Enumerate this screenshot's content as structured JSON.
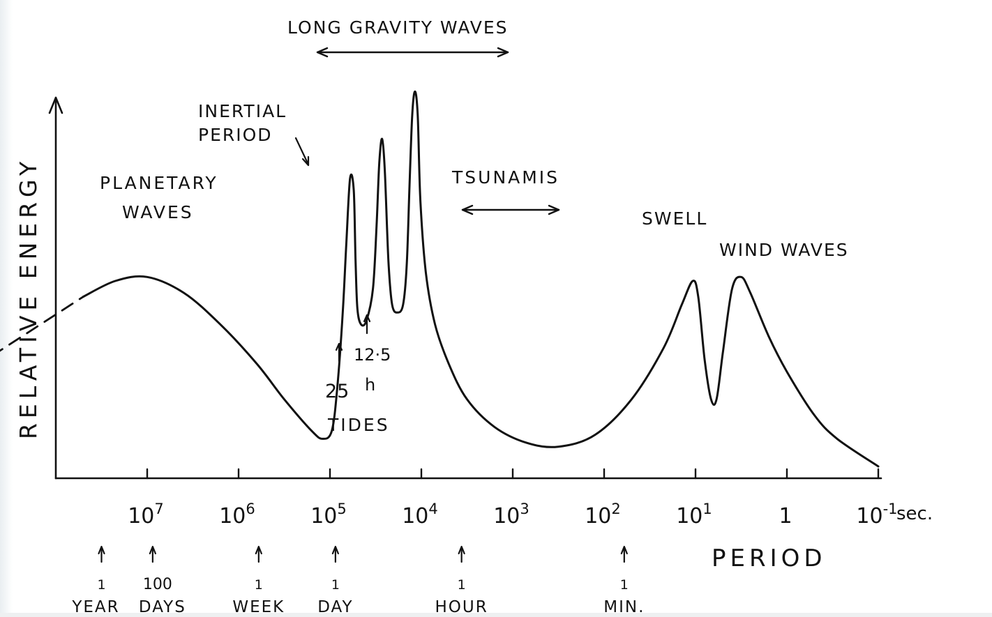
{
  "chart_data": {
    "type": "line",
    "title": "",
    "xlabel": "PERIOD",
    "ylabel": "RELATIVE ENERGY",
    "x_scale": "log-reversed",
    "x_unit": "sec.",
    "xlim_exponent": [
      7.5,
      -1
    ],
    "x_ticks": [
      {
        "label": "10",
        "exp": "7",
        "v": 7
      },
      {
        "label": "10",
        "exp": "6",
        "v": 6
      },
      {
        "label": "10",
        "exp": "5",
        "v": 5
      },
      {
        "label": "10",
        "exp": "4",
        "v": 4
      },
      {
        "label": "10",
        "exp": "3",
        "v": 3
      },
      {
        "label": "10",
        "exp": "2",
        "v": 2
      },
      {
        "label": "10",
        "exp": "1",
        "v": 1
      },
      {
        "label": "1",
        "exp": "",
        "v": 0
      },
      {
        "label": "10",
        "exp": "-1",
        "v": -1
      }
    ],
    "time_markers": [
      {
        "top": "1",
        "bottom": "YEAR",
        "v": 7.5
      },
      {
        "top": "100",
        "bottom": "DAYS",
        "v": 6.94
      },
      {
        "top": "1",
        "bottom": "WEEK",
        "v": 5.78
      },
      {
        "top": "1",
        "bottom": "DAY",
        "v": 4.94
      },
      {
        "top": "1",
        "bottom": "HOUR",
        "v": 3.56
      },
      {
        "top": "1",
        "bottom": "MIN.",
        "v": 1.78
      }
    ],
    "ylim": [
      0,
      1
    ],
    "series": [
      {
        "dashed_segment": [
          [
            8.7,
            0.31
          ],
          [
            7.7,
            0.46
          ]
        ],
        "points": [
          [
            7.7,
            0.46
          ],
          [
            7.35,
            0.5
          ],
          [
            7.0,
            0.51
          ],
          [
            6.6,
            0.47
          ],
          [
            6.2,
            0.39
          ],
          [
            5.8,
            0.29
          ],
          [
            5.5,
            0.2
          ],
          [
            5.2,
            0.12
          ],
          [
            5.08,
            0.1
          ],
          [
            4.98,
            0.12
          ],
          [
            4.92,
            0.23
          ],
          [
            4.86,
            0.42
          ],
          [
            4.82,
            0.6
          ],
          [
            4.78,
            0.76
          ],
          [
            4.74,
            0.73
          ],
          [
            4.72,
            0.55
          ],
          [
            4.7,
            0.43
          ],
          [
            4.66,
            0.39
          ],
          [
            4.6,
            0.4
          ],
          [
            4.53,
            0.48
          ],
          [
            4.49,
            0.64
          ],
          [
            4.46,
            0.8
          ],
          [
            4.43,
            0.86
          ],
          [
            4.4,
            0.78
          ],
          [
            4.36,
            0.55
          ],
          [
            4.32,
            0.44
          ],
          [
            4.26,
            0.42
          ],
          [
            4.2,
            0.44
          ],
          [
            4.16,
            0.54
          ],
          [
            4.13,
            0.74
          ],
          [
            4.1,
            0.92
          ],
          [
            4.07,
            0.98
          ],
          [
            4.04,
            0.92
          ],
          [
            4.01,
            0.7
          ],
          [
            3.95,
            0.52
          ],
          [
            3.85,
            0.39
          ],
          [
            3.7,
            0.29
          ],
          [
            3.5,
            0.2
          ],
          [
            3.2,
            0.13
          ],
          [
            2.85,
            0.09
          ],
          [
            2.5,
            0.08
          ],
          [
            2.1,
            0.11
          ],
          [
            1.7,
            0.2
          ],
          [
            1.35,
            0.33
          ],
          [
            1.15,
            0.44
          ],
          [
            1.03,
            0.5
          ],
          [
            0.97,
            0.46
          ],
          [
            0.9,
            0.3
          ],
          [
            0.83,
            0.2
          ],
          [
            0.77,
            0.2
          ],
          [
            0.7,
            0.32
          ],
          [
            0.6,
            0.48
          ],
          [
            0.5,
            0.51
          ],
          [
            0.4,
            0.47
          ],
          [
            0.2,
            0.36
          ],
          [
            0.0,
            0.27
          ],
          [
            -0.3,
            0.16
          ],
          [
            -0.55,
            0.1
          ],
          [
            -1.0,
            0.03
          ]
        ]
      }
    ],
    "annotations": {
      "long_gravity": "LONG GRAVITY WAVES",
      "inertial_1": "INERTIAL",
      "inertial_2": "PERIOD",
      "planetary_1": "PLANETARY",
      "planetary_2": "WAVES",
      "tsunamis": "TSUNAMIS",
      "swell": "SWELL",
      "wind_waves": "WIND WAVES",
      "tide_125": "12·5",
      "tide_25": "25",
      "tide_h": "h",
      "tides": "TIDES"
    }
  }
}
